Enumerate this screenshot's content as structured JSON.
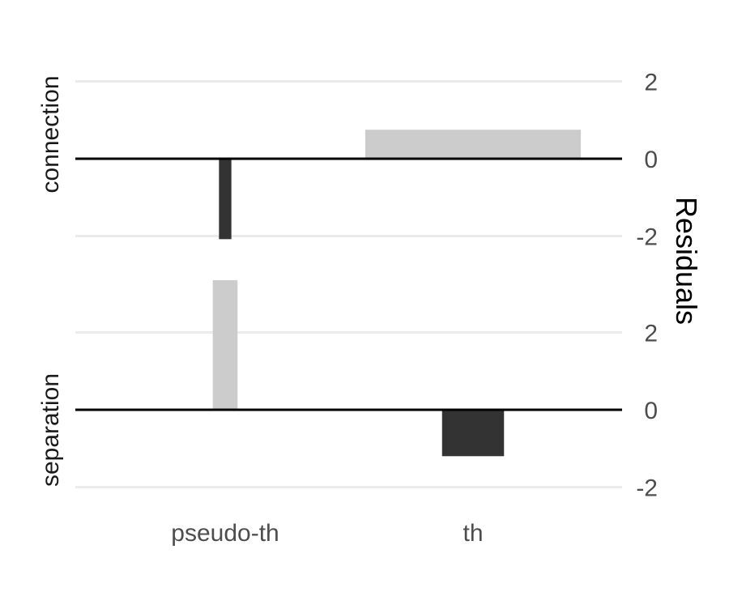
{
  "chart_data": {
    "type": "bar",
    "categories": [
      "pseudo-th",
      "th"
    ],
    "facets": [
      "connection",
      "separation"
    ],
    "ylabel": "Residuals",
    "ylim": [
      -2.2,
      2.6
    ],
    "y_ticks": [
      "-2",
      "0",
      "2"
    ],
    "tick_values": [
      -2,
      0,
      2
    ],
    "grid": true,
    "y_axis_position": "right",
    "panels": [
      {
        "facet": "connection",
        "values": [
          -2.08,
          0.75
        ],
        "bar_width_fraction": [
          0.05,
          0.87
        ]
      },
      {
        "facet": "separation",
        "values": [
          3.35,
          -1.2
        ],
        "bar_width_fraction": [
          0.1,
          0.25
        ]
      }
    ],
    "colors": {
      "positive": "#cccccc",
      "negative": "#333333",
      "zero_line": "#000000",
      "grid": "#ebebeb"
    }
  }
}
